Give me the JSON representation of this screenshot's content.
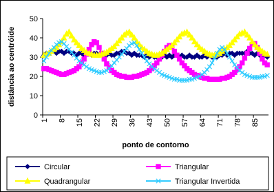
{
  "chart_data": {
    "type": "line",
    "xlabel": "ponto de contorno",
    "ylabel": "distância ao centróide",
    "categories": [
      1,
      null,
      null,
      null,
      null,
      null,
      null,
      8,
      null,
      null,
      null,
      null,
      null,
      null,
      15,
      null,
      null,
      null,
      null,
      null,
      null,
      22,
      null,
      null,
      null,
      null,
      null,
      null,
      29,
      null,
      null,
      null,
      null,
      null,
      null,
      36,
      null,
      null,
      null,
      null,
      null,
      null,
      43,
      null,
      null,
      null,
      null,
      null,
      null,
      50,
      null,
      null,
      null,
      null,
      null,
      null,
      57,
      null,
      null,
      null,
      null,
      null,
      null,
      64,
      null,
      null,
      null,
      null,
      null,
      null,
      71,
      null,
      null,
      null,
      null,
      null,
      null,
      78,
      null,
      null,
      null,
      null,
      null,
      null,
      85,
      null,
      null,
      null,
      null,
      null
    ],
    "ylim": [
      0,
      50
    ],
    "yticks": [
      0,
      10,
      20,
      30,
      40,
      50
    ],
    "grid": false,
    "legend": "bottom",
    "series": [
      {
        "name": "Circular",
        "color": "#000080",
        "marker": "diamond",
        "values": [
          31,
          32,
          32,
          33,
          33,
          32,
          33,
          33,
          32,
          33,
          33,
          32,
          32,
          31,
          32,
          32,
          31,
          32,
          32,
          31,
          32,
          32,
          31,
          32,
          31,
          31,
          32,
          31,
          31,
          32,
          32,
          33,
          33,
          32,
          32,
          31,
          32,
          31,
          31,
          31,
          30,
          31,
          30,
          31,
          30,
          30,
          31,
          30,
          31,
          30,
          31,
          30,
          31,
          31,
          30,
          31,
          30,
          30,
          31,
          30,
          30,
          31,
          30,
          30,
          31,
          30,
          31,
          30,
          31,
          30,
          31,
          31,
          32,
          31,
          32,
          32,
          31,
          32,
          32,
          32,
          32,
          33,
          32,
          32,
          31,
          32,
          31,
          31,
          31,
          30
        ]
      },
      {
        "name": "Triangular",
        "color": "#ff00ff",
        "marker": "square",
        "values": [
          24,
          24,
          23.5,
          23,
          22.5,
          22,
          21.5,
          21,
          21,
          21.5,
          22,
          22.5,
          23,
          24,
          25,
          27,
          29,
          31.5,
          34,
          36.5,
          38,
          37.5,
          35,
          32,
          29,
          26.5,
          24.5,
          23,
          22,
          21,
          20.5,
          20,
          20,
          19.5,
          19.5,
          19.5,
          20,
          20,
          20.5,
          21,
          21.5,
          22,
          23,
          24,
          25.5,
          27,
          29,
          31,
          33,
          35,
          36,
          35,
          33,
          31,
          29,
          27,
          25.5,
          24,
          23,
          22,
          21,
          20.5,
          20,
          19.5,
          19,
          19,
          18.5,
          18.5,
          18.5,
          18.5,
          18.5,
          19,
          19,
          19.5,
          20,
          21,
          22,
          23.5,
          25,
          27,
          29.5,
          32,
          34.5,
          36.5,
          37,
          35,
          32,
          29,
          27,
          26
        ]
      },
      {
        "name": "Quadrangular",
        "color": "#ffff00",
        "marker": "triangle",
        "values": [
          31,
          31.5,
          32,
          33,
          34,
          35,
          36.5,
          38,
          40,
          42,
          43,
          41,
          39,
          37.5,
          36,
          34.5,
          33.5,
          32.5,
          32,
          31.5,
          31,
          31,
          31,
          31.5,
          32,
          32.5,
          33.5,
          34.5,
          35.5,
          37,
          38.5,
          40,
          41.5,
          42.5,
          43,
          41.5,
          40,
          38,
          36.5,
          35,
          34,
          33,
          32,
          31.5,
          31,
          31,
          31.5,
          32,
          33,
          34,
          35,
          36,
          37.5,
          39,
          40.5,
          42,
          42.5,
          43,
          41.5,
          40,
          38,
          36.5,
          35,
          34,
          33,
          32,
          31.5,
          31,
          31,
          31.5,
          32,
          33,
          34,
          35,
          36,
          37.5,
          39,
          40.5,
          42,
          42.5,
          43,
          41.5,
          40,
          38,
          36.5,
          35,
          34,
          33,
          32,
          31.5
        ]
      },
      {
        "name": "Triangular Invertida",
        "color": "#33ccff",
        "marker": "x",
        "values": [
          28,
          30,
          32,
          33.5,
          35,
          36.5,
          37.5,
          38,
          37,
          35.5,
          34,
          32.5,
          31,
          29.5,
          28,
          27,
          26,
          25,
          24,
          23.5,
          23,
          22.5,
          22,
          22,
          22.5,
          23,
          24,
          25.5,
          27,
          28.5,
          30,
          31.5,
          33,
          34.5,
          36,
          37,
          37.5,
          36,
          34,
          32,
          30,
          28,
          26.5,
          25,
          24,
          23,
          22,
          21,
          20.5,
          20,
          19.5,
          19,
          18.5,
          18.5,
          18,
          18,
          18,
          18,
          18.5,
          18.5,
          19,
          19.5,
          20,
          21,
          22,
          23.5,
          25,
          27,
          29.5,
          32,
          34,
          35,
          34,
          32,
          30,
          28,
          26,
          24.5,
          23,
          22,
          21,
          20.5,
          20,
          19.5,
          19.5,
          19.5,
          19.5,
          20,
          20,
          20.5
        ]
      }
    ]
  }
}
